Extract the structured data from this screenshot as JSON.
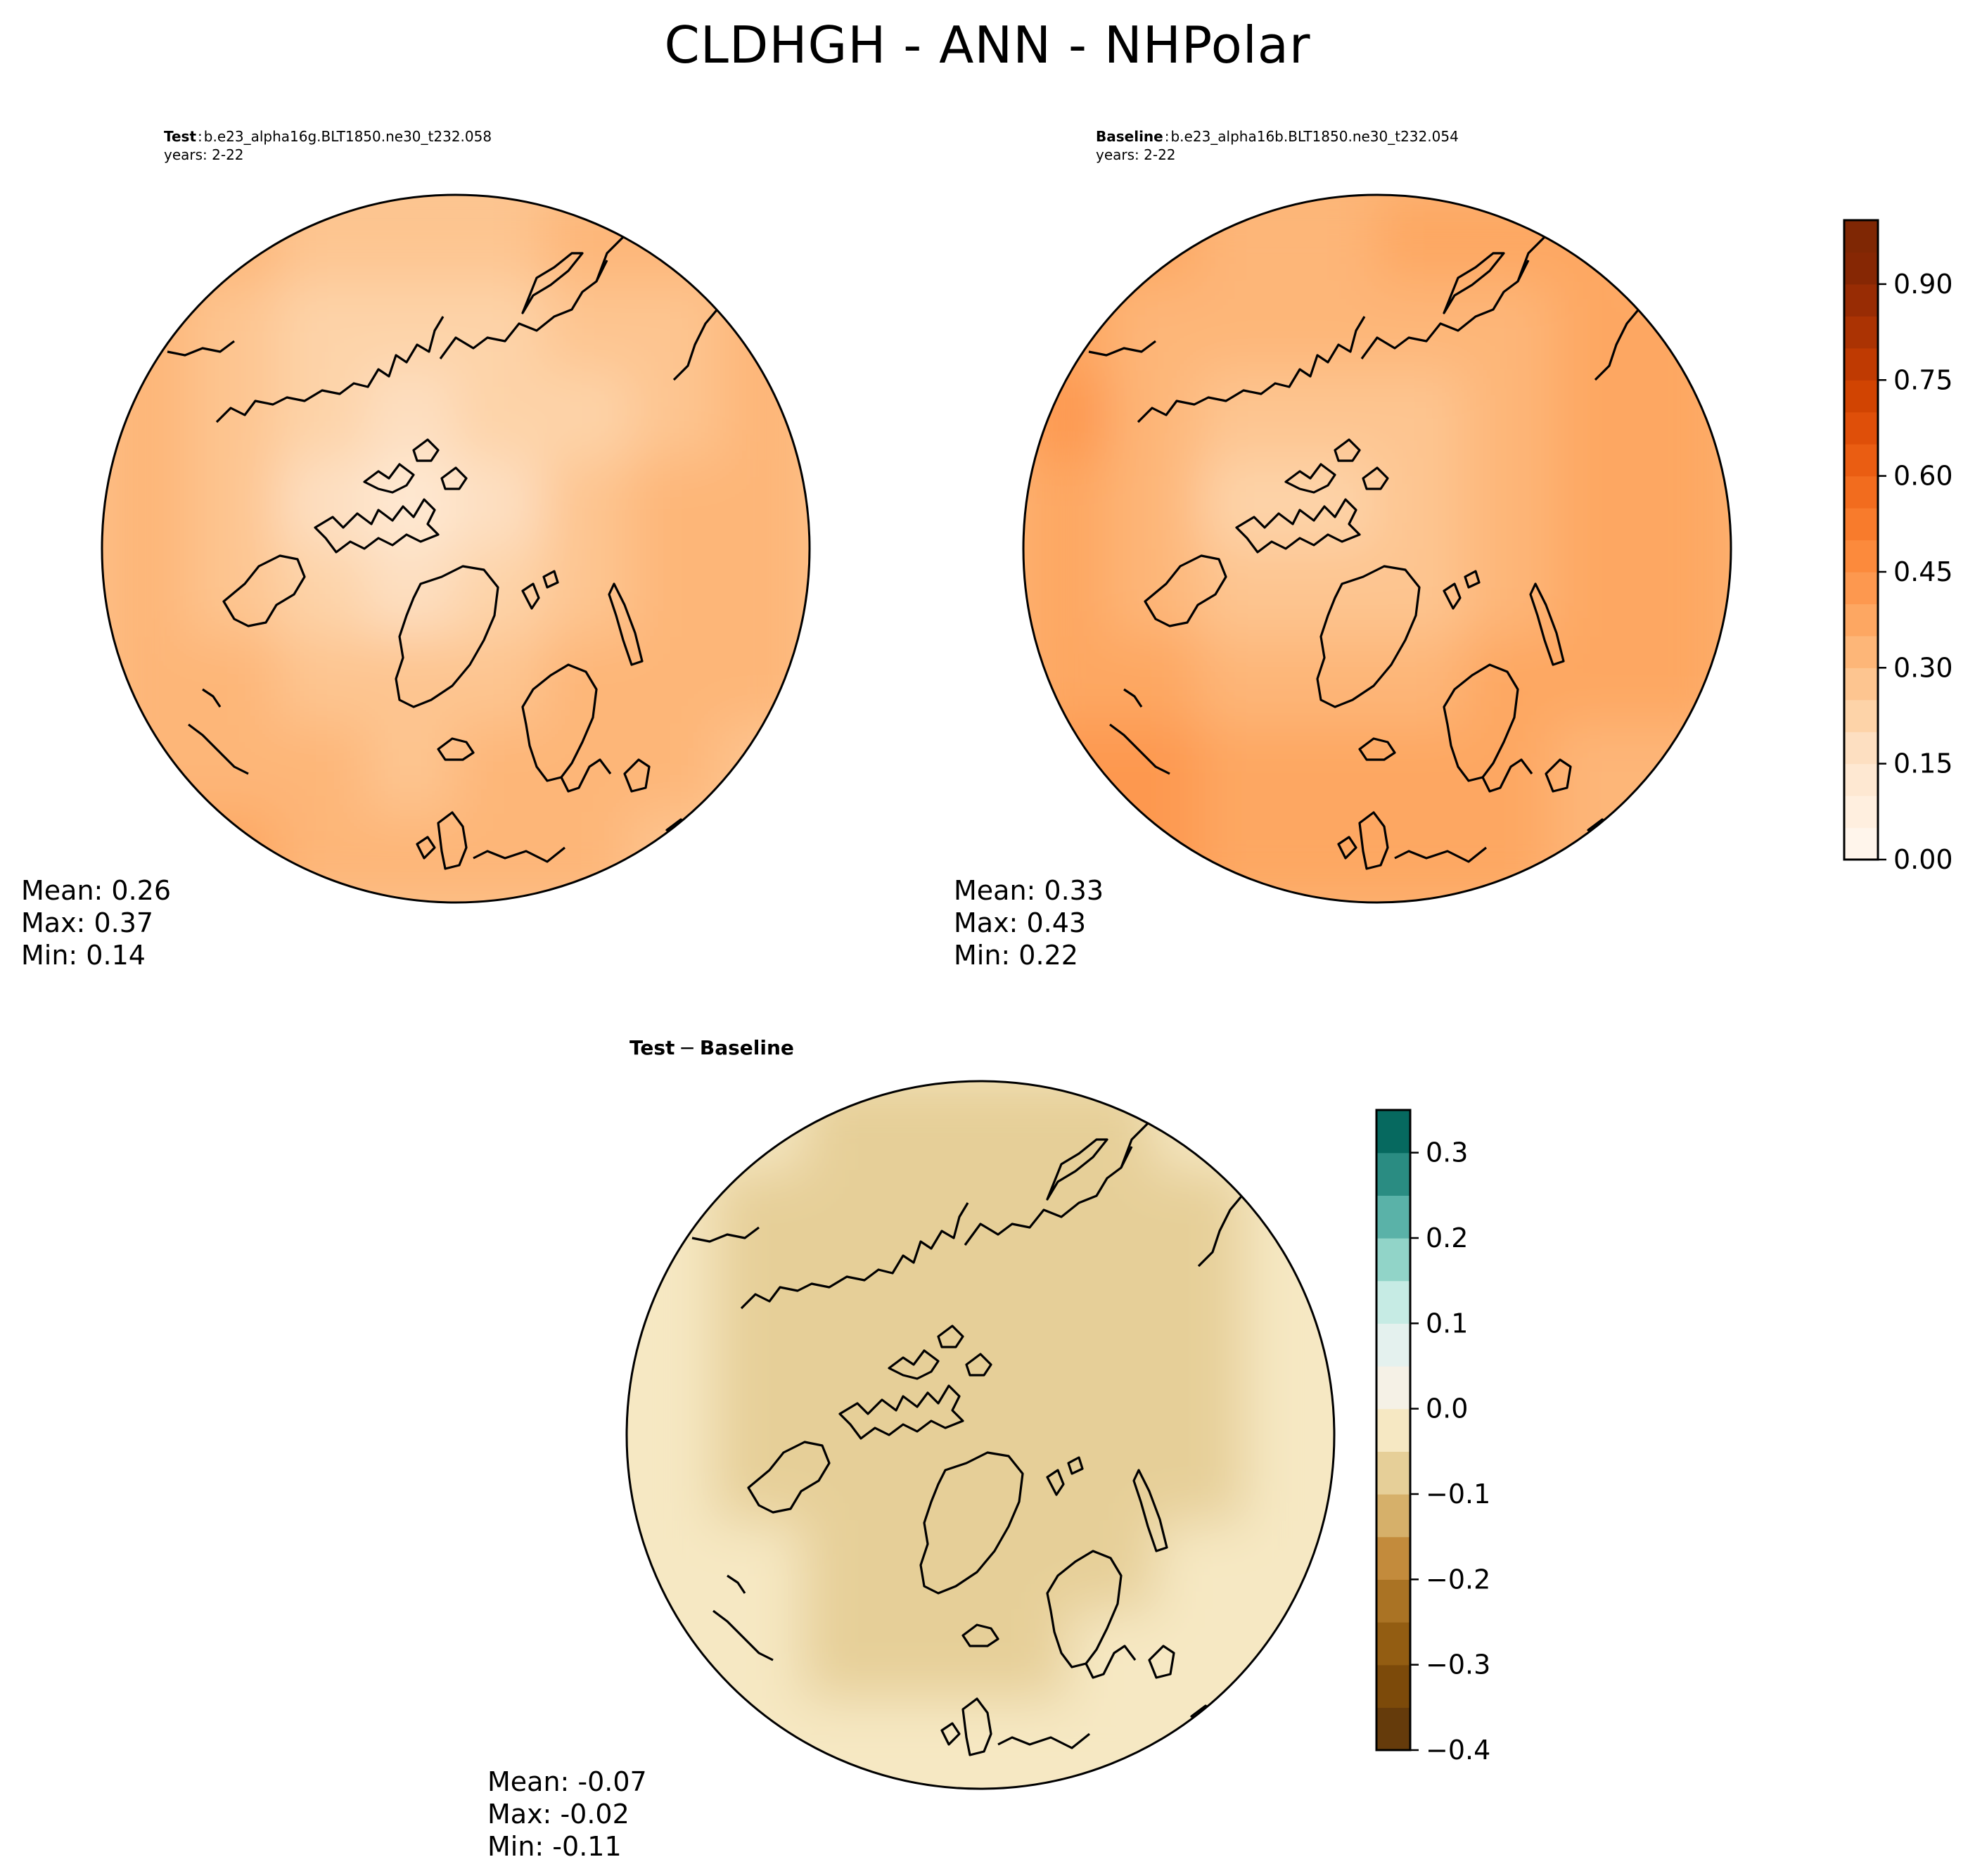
{
  "figure": {
    "title": "CLDHGH - ANN - NHPolar"
  },
  "panels": {
    "test": {
      "label": "Test",
      "case": "b.e23_alpha16g.BLT1850.ne30_t232.058",
      "years": "years: 2-22",
      "stats": {
        "mean": "Mean:  0.26",
        "max": "Max:  0.37",
        "min": "Min:  0.14"
      }
    },
    "baseline": {
      "label": "Baseline",
      "case": "b.e23_alpha16b.BLT1850.ne30_t232.054",
      "years": "years: 2-22",
      "stats": {
        "mean": "Mean:  0.33",
        "max": "Max:  0.43",
        "min": "Min:  0.22"
      }
    },
    "diff": {
      "title_a": "Test",
      "title_sep": "−",
      "title_b": "Baseline",
      "stats": {
        "mean": "Mean: -0.07",
        "max": "Max: -0.02",
        "min": "Min: -0.11"
      }
    }
  },
  "chart_data": [
    {
      "type": "heatmap",
      "projection": "north-polar-stereographic",
      "name": "Test",
      "variable": "CLDHGH",
      "mean": 0.26,
      "max": 0.37,
      "min": 0.14,
      "colorbar": {
        "range": [
          0,
          1.0
        ],
        "levels": [
          0,
          0.05,
          0.1,
          0.15,
          0.2,
          0.25,
          0.3,
          0.35,
          0.4,
          0.45,
          0.5,
          0.55,
          0.6,
          0.65,
          0.7,
          0.75,
          0.8,
          0.85,
          0.9,
          0.95,
          1.0
        ],
        "ticks": [
          0.0,
          0.15,
          0.3,
          0.45,
          0.6,
          0.75,
          0.9
        ],
        "tick_labels": [
          "0.00",
          "0.15",
          "0.30",
          "0.45",
          "0.60",
          "0.75",
          "0.90"
        ],
        "colors": [
          "#fff5eb",
          "#ffefdf",
          "#fee8d2",
          "#fddfc1",
          "#fdd3a8",
          "#fdc590",
          "#fdb678",
          "#fda762",
          "#fd984f",
          "#fc8a3c",
          "#f87b2c",
          "#f26c1e",
          "#ea5d12",
          "#df4f09",
          "#d14402",
          "#bf3a02",
          "#ab3303",
          "#982c04",
          "#862704",
          "#7f2704"
        ]
      },
      "field": [
        [
          0.3,
          0.3,
          0.27,
          0.26,
          0.28,
          0.3,
          0.3,
          0.28
        ],
        [
          0.3,
          0.26,
          0.24,
          0.23,
          0.24,
          0.26,
          0.28,
          0.31
        ],
        [
          0.32,
          0.27,
          0.21,
          0.17,
          0.2,
          0.24,
          0.28,
          0.33
        ],
        [
          0.31,
          0.26,
          0.16,
          0.14,
          0.17,
          0.25,
          0.3,
          0.34
        ],
        [
          0.3,
          0.27,
          0.22,
          0.19,
          0.21,
          0.27,
          0.33,
          0.34
        ],
        [
          0.32,
          0.3,
          0.27,
          0.25,
          0.27,
          0.3,
          0.32,
          0.3
        ],
        [
          0.34,
          0.34,
          0.31,
          0.29,
          0.3,
          0.31,
          0.3,
          0.28
        ],
        [
          0.35,
          0.36,
          0.33,
          0.31,
          0.31,
          0.3,
          0.28,
          0.27
        ]
      ]
    },
    {
      "type": "heatmap",
      "projection": "north-polar-stereographic",
      "name": "Baseline",
      "variable": "CLDHGH",
      "mean": 0.33,
      "max": 0.43,
      "min": 0.22,
      "colorbar": {
        "range": [
          0,
          1.0
        ],
        "ticks": [
          0.0,
          0.15,
          0.3,
          0.45,
          0.6,
          0.75,
          0.9
        ],
        "tick_labels": [
          "0.00",
          "0.15",
          "0.30",
          "0.45",
          "0.60",
          "0.75",
          "0.90"
        ]
      },
      "field": [
        [
          0.36,
          0.36,
          0.34,
          0.34,
          0.35,
          0.35,
          0.36,
          0.33
        ],
        [
          0.38,
          0.34,
          0.31,
          0.3,
          0.3,
          0.32,
          0.36,
          0.37
        ],
        [
          0.4,
          0.34,
          0.28,
          0.25,
          0.27,
          0.3,
          0.36,
          0.38
        ],
        [
          0.38,
          0.32,
          0.24,
          0.22,
          0.25,
          0.3,
          0.37,
          0.37
        ],
        [
          0.37,
          0.32,
          0.29,
          0.26,
          0.28,
          0.33,
          0.38,
          0.37
        ],
        [
          0.38,
          0.36,
          0.33,
          0.31,
          0.32,
          0.36,
          0.37,
          0.35
        ],
        [
          0.4,
          0.4,
          0.37,
          0.35,
          0.35,
          0.36,
          0.34,
          0.32
        ],
        [
          0.42,
          0.42,
          0.39,
          0.37,
          0.36,
          0.35,
          0.33,
          0.32
        ]
      ]
    },
    {
      "type": "heatmap",
      "projection": "north-polar-stereographic",
      "name": "Test - Baseline",
      "variable": "CLDHGH",
      "mean": -0.07,
      "max": -0.02,
      "min": -0.11,
      "colorbar": {
        "range": [
          -0.4,
          0.35
        ],
        "levels": [
          -0.4,
          -0.35,
          -0.3,
          -0.25,
          -0.2,
          -0.15,
          -0.1,
          -0.05,
          0.0,
          0.05,
          0.1,
          0.15,
          0.2,
          0.25,
          0.3,
          0.35
        ],
        "ticks": [
          -0.4,
          -0.3,
          -0.2,
          -0.1,
          0.0,
          0.1,
          0.2,
          0.3
        ],
        "tick_labels": [
          "−0.4",
          "−0.3",
          "−0.2",
          "−0.1",
          "0.0",
          "0.1",
          "0.2",
          "0.3"
        ],
        "colors": [
          "#653b0b",
          "#7c4a0a",
          "#935d12",
          "#aa7324",
          "#c38b3c",
          "#d6b06a",
          "#e6cf98",
          "#f6e8c3",
          "#f5f1e6",
          "#e4f1ee",
          "#c6ebe4",
          "#91d4c8",
          "#5ab2a8",
          "#2a8c82",
          "#06695f",
          "#01503f"
        ]
      },
      "field": [
        [
          -0.03,
          -0.04,
          -0.06,
          -0.07,
          -0.07,
          -0.06,
          -0.05,
          -0.04
        ],
        [
          -0.04,
          -0.06,
          -0.07,
          -0.07,
          -0.07,
          -0.07,
          -0.06,
          -0.04
        ],
        [
          -0.04,
          -0.06,
          -0.07,
          -0.08,
          -0.08,
          -0.09,
          -0.07,
          -0.04
        ],
        [
          -0.04,
          -0.07,
          -0.08,
          -0.08,
          -0.09,
          -0.1,
          -0.07,
          -0.04
        ],
        [
          -0.04,
          -0.06,
          -0.08,
          -0.09,
          -0.1,
          -0.07,
          -0.06,
          -0.04
        ],
        [
          -0.04,
          -0.05,
          -0.07,
          -0.08,
          -0.08,
          -0.07,
          -0.05,
          -0.04
        ],
        [
          -0.03,
          -0.04,
          -0.06,
          -0.06,
          -0.06,
          -0.05,
          -0.04,
          -0.03
        ],
        [
          -0.03,
          -0.04,
          -0.05,
          -0.05,
          -0.05,
          -0.04,
          -0.03,
          -0.03
        ]
      ]
    }
  ]
}
